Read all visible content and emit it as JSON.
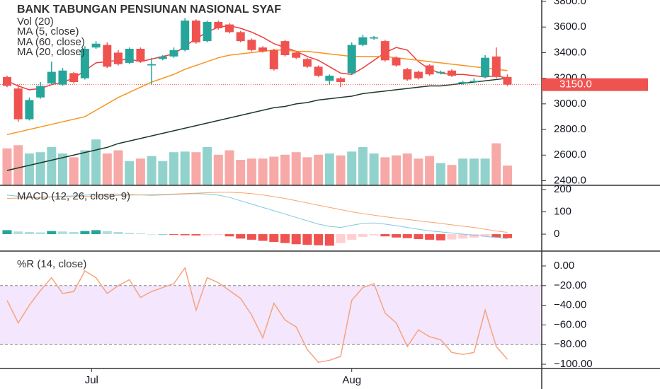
{
  "chart_data": [
    {
      "type": "candlestick",
      "title": "BANK TABUNGAN PENSIUNAN NASIONAL SYAF",
      "ylim": [
        2364,
        3811
      ],
      "yticks": [
        {
          "value": 3800,
          "label": "3800.0"
        },
        {
          "value": 3600,
          "label": "3600.0"
        },
        {
          "value": 3400,
          "label": "3400.0"
        },
        {
          "value": 3200,
          "label": "3200.0"
        },
        {
          "value": 3000,
          "label": "3000.0"
        },
        {
          "value": 2800,
          "label": "2800.0"
        },
        {
          "value": 2600,
          "label": "2600.0"
        },
        {
          "value": 2400,
          "label": "2400.0"
        }
      ],
      "xticks": [
        {
          "value": 7.6,
          "label": "Jul"
        },
        {
          "value": 31,
          "label": "Aug"
        }
      ],
      "colors": {
        "up": "#26a69a",
        "down": "#ef5350"
      },
      "open": [
        3210,
        3120,
        2880,
        3050,
        3160,
        3150,
        3240,
        3200,
        3440,
        3460,
        3400,
        3320,
        3430,
        3300,
        3350,
        3370,
        3420,
        3650,
        3490,
        3640,
        3620,
        3560,
        3500,
        3440,
        3420,
        3490,
        3400,
        3350,
        3290,
        3180,
        3200,
        3240,
        3460,
        3510,
        3490,
        3360,
        3270,
        3250,
        3300,
        3240,
        3260,
        3160,
        3170,
        3210,
        3370,
        3210
      ],
      "high": [
        3220,
        3150,
        3050,
        3170,
        3330,
        3280,
        3250,
        3450,
        3490,
        3480,
        3420,
        3440,
        3440,
        3360,
        3380,
        3440,
        3670,
        3660,
        3650,
        3650,
        3630,
        3570,
        3510,
        3450,
        3430,
        3500,
        3410,
        3360,
        3300,
        3230,
        3210,
        3480,
        3540,
        3530,
        3500,
        3370,
        3280,
        3260,
        3310,
        3260,
        3270,
        3180,
        3200,
        3380,
        3440,
        3230
      ],
      "low": [
        3130,
        2860,
        2870,
        3040,
        3150,
        3140,
        3160,
        3190,
        3430,
        3280,
        3300,
        3310,
        3320,
        3150,
        3340,
        3360,
        3410,
        3470,
        3480,
        3580,
        3550,
        3480,
        3410,
        3400,
        3260,
        3370,
        3350,
        3280,
        3210,
        3150,
        3130,
        3230,
        3450,
        3500,
        3330,
        3290,
        3180,
        3190,
        3220,
        3230,
        3210,
        3150,
        3160,
        3200,
        3200,
        3140
      ],
      "close": [
        3140,
        2880,
        3030,
        3140,
        3250,
        3260,
        3170,
        3430,
        3470,
        3290,
        3310,
        3430,
        3330,
        3310,
        3370,
        3420,
        3650,
        3480,
        3640,
        3590,
        3560,
        3490,
        3420,
        3410,
        3270,
        3380,
        3360,
        3290,
        3220,
        3220,
        3170,
        3460,
        3520,
        3520,
        3340,
        3300,
        3190,
        3200,
        3230,
        3250,
        3220,
        3170,
        3180,
        3360,
        3210,
        3150
      ],
      "volume": {
        "name": "Vol (20)",
        "lim": [
          0,
          100
        ],
        "values": [
          58,
          63,
          50,
          52,
          60,
          50,
          44,
          55,
          72,
          50,
          55,
          38,
          42,
          46,
          38,
          52,
          53,
          52,
          60,
          48,
          55,
          40,
          42,
          42,
          45,
          48,
          52,
          44,
          48,
          50,
          47,
          53,
          60,
          50,
          44,
          47,
          50,
          42,
          46,
          35,
          32,
          42,
          42,
          42,
          66,
          31
        ]
      },
      "series": [
        {
          "name": "MA (5, close)",
          "color": "#ef3b3b",
          "values": [
            3180,
            3140,
            3110,
            3120,
            3150,
            3170,
            3200,
            3260,
            3320,
            3330,
            3340,
            3350,
            3330,
            3350,
            3370,
            3390,
            3450,
            3510,
            3560,
            3600,
            3610,
            3590,
            3560,
            3520,
            3470,
            3440,
            3410,
            3370,
            3340,
            3290,
            3240,
            3230,
            3280,
            3340,
            3400,
            3440,
            3420,
            3330,
            3270,
            3240,
            3230,
            3230,
            3220,
            3210,
            3220,
            3200
          ]
        },
        {
          "name": "MA (60, close)",
          "color": "#1b3a2a",
          "values": [
            2480,
            2500,
            2520,
            2540,
            2560,
            2580,
            2600,
            2620,
            2640,
            2660,
            2690,
            2710,
            2730,
            2750,
            2770,
            2790,
            2810,
            2830,
            2850,
            2870,
            2890,
            2910,
            2930,
            2950,
            2970,
            2980,
            3000,
            3010,
            3030,
            3040,
            3050,
            3060,
            3080,
            3090,
            3100,
            3110,
            3120,
            3130,
            3140,
            3140,
            3150,
            3160,
            3170,
            3180,
            3190,
            3200
          ]
        },
        {
          "name": "MA (20, close)",
          "color": "#f7931e",
          "values": [
            2760,
            2780,
            2800,
            2820,
            2840,
            2860,
            2880,
            2900,
            2950,
            3000,
            3050,
            3090,
            3130,
            3170,
            3200,
            3230,
            3270,
            3300,
            3330,
            3360,
            3380,
            3390,
            3400,
            3410,
            3420,
            3420,
            3410,
            3410,
            3400,
            3390,
            3380,
            3370,
            3370,
            3370,
            3370,
            3360,
            3350,
            3340,
            3330,
            3320,
            3310,
            3300,
            3290,
            3280,
            3270,
            3260
          ]
        }
      ],
      "last_price": {
        "value": 3150,
        "label": "3150.0"
      }
    },
    {
      "type": "macd",
      "title": "MACD (12, 26, close, 9)",
      "ylim": [
        -76,
        216
      ],
      "yticks": [
        200,
        100,
        0
      ],
      "histogram": [
        18,
        12,
        10,
        8,
        14,
        12,
        10,
        14,
        18,
        14,
        10,
        5,
        3,
        0,
        0,
        -3,
        -5,
        -6,
        -5,
        -4,
        -10,
        -20,
        -25,
        -30,
        -35,
        -40,
        -45,
        -48,
        -50,
        -52,
        -40,
        -25,
        -12,
        -5,
        -10,
        -15,
        -18,
        -22,
        -25,
        -28,
        -24,
        -20,
        -16,
        -10,
        -15,
        -18
      ],
      "colors": {
        "up": "#26a69a",
        "up_fading": "#b2dfdb",
        "down": "#ef5350",
        "down_fading": "#ffcdd2"
      },
      "series": [
        {
          "color": "#7fc8e0",
          "values": [
            175,
            170,
            165,
            165,
            168,
            170,
            172,
            175,
            178,
            180,
            180,
            178,
            176,
            174,
            176,
            178,
            180,
            182,
            180,
            175,
            165,
            150,
            135,
            120,
            105,
            90,
            75,
            60,
            45,
            35,
            30,
            40,
            48,
            50,
            45,
            38,
            30,
            22,
            15,
            10,
            5,
            0,
            -5,
            -10,
            -15,
            -20
          ]
        },
        {
          "color": "#f7a56b",
          "values": [
            160,
            162,
            163,
            165,
            166,
            167,
            168,
            170,
            171,
            172,
            174,
            175,
            176,
            177,
            178,
            180,
            182,
            184,
            186,
            188,
            188,
            186,
            182,
            176,
            168,
            160,
            150,
            140,
            130,
            120,
            110,
            100,
            92,
            85,
            78,
            72,
            66,
            60,
            54,
            48,
            42,
            36,
            30,
            22,
            14,
            8
          ]
        }
      ]
    },
    {
      "type": "williams-r",
      "title": "%R (14, close)",
      "ylim": [
        -103.6,
        14.4
      ],
      "yticks": [
        {
          "value": 0,
          "label": "0.00"
        },
        {
          "value": -20,
          "label": "−20.00"
        },
        {
          "value": -40,
          "label": "−40.00"
        },
        {
          "value": -60,
          "label": "−60.00"
        },
        {
          "value": -80,
          "label": "−80.00"
        },
        {
          "value": -100,
          "label": "−100.00"
        }
      ],
      "band": [
        -20,
        -80
      ],
      "band_color": "#f3e6fd",
      "color": "#f7a37e",
      "values": [
        -35,
        -58,
        -40,
        -25,
        -12,
        -28,
        -26,
        -5,
        -12,
        -28,
        -20,
        -14,
        -32,
        -26,
        -22,
        -18,
        -2,
        -45,
        -12,
        -17,
        -25,
        -33,
        -50,
        -73,
        -38,
        -55,
        -62,
        -85,
        -98,
        -96,
        -92,
        -35,
        -22,
        -18,
        -48,
        -58,
        -82,
        -65,
        -72,
        -75,
        -88,
        -90,
        -88,
        -45,
        -82,
        -95
      ]
    }
  ]
}
